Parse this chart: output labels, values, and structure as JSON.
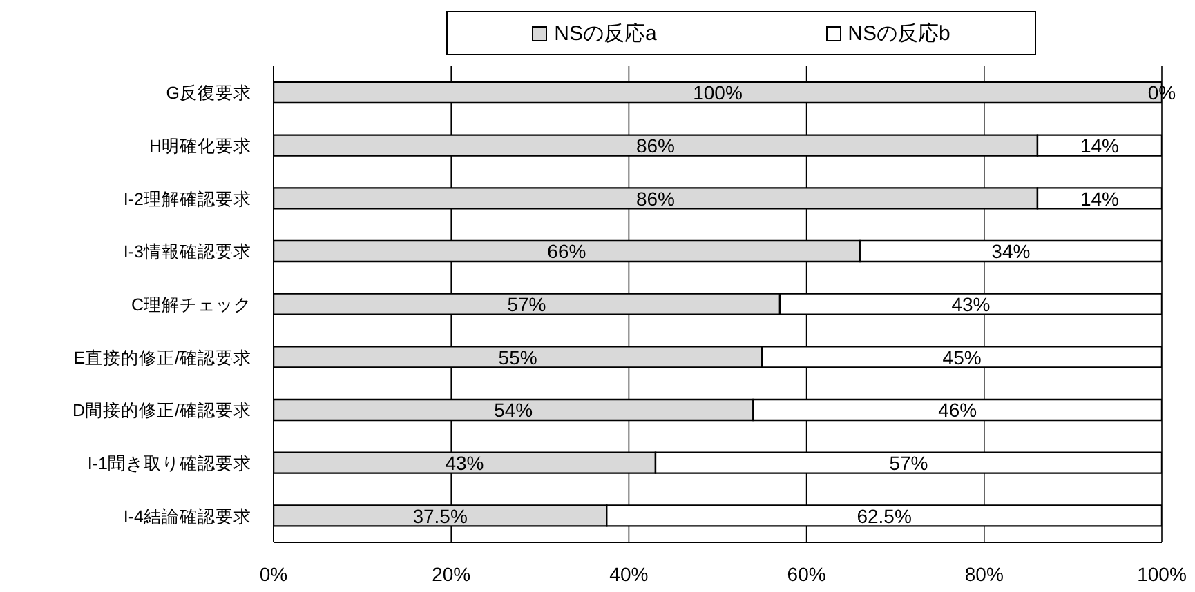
{
  "chart_data": {
    "type": "bar",
    "orientation": "horizontal",
    "stacked": true,
    "categories": [
      "G反復要求",
      "H明確化要求",
      "I-2理解確認要求",
      "I-3情報確認要求",
      "C理解チェック",
      "E直接的修正/確認要求",
      "D間接的修正/確認要求",
      "I-1聞き取り確認要求",
      "I-4結論確認要求"
    ],
    "series": [
      {
        "name": "NSの反応a",
        "color": "#d9d9d9",
        "values": [
          100,
          86,
          86,
          66,
          57,
          55,
          54,
          43,
          37.5
        ],
        "value_labels": [
          "100%",
          "86%",
          "86%",
          "66%",
          "57%",
          "55%",
          "54%",
          "43%",
          "37.5%"
        ]
      },
      {
        "name": "NSの反応b",
        "color": "#ffffff",
        "values": [
          0,
          14,
          14,
          34,
          43,
          45,
          46,
          57,
          62.5
        ],
        "value_labels": [
          "0%",
          "14%",
          "14%",
          "34%",
          "43%",
          "45%",
          "46%",
          "57%",
          "62.5%"
        ]
      }
    ],
    "xlim": [
      0,
      100
    ],
    "xticks": [
      {
        "value": 0,
        "label": "0%"
      },
      {
        "value": 20,
        "label": "20%"
      },
      {
        "value": 40,
        "label": "40%"
      },
      {
        "value": 60,
        "label": "60%"
      },
      {
        "value": 80,
        "label": "80%"
      },
      {
        "value": 100,
        "label": "100%"
      }
    ],
    "grid": "x",
    "legend": "top"
  }
}
